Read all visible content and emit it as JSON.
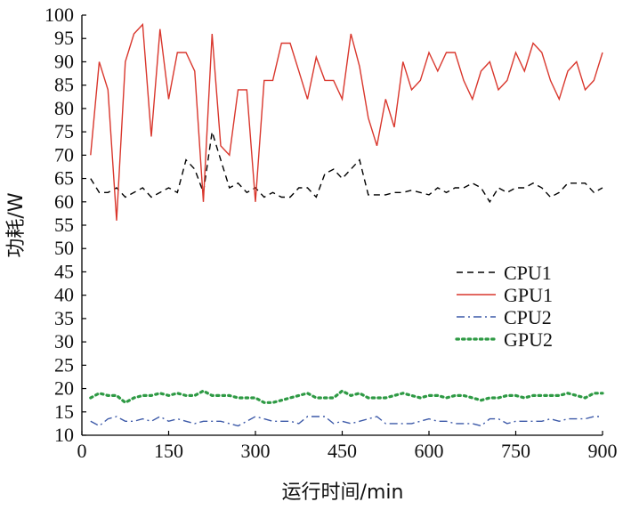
{
  "chart_data": {
    "type": "line",
    "title": "",
    "xlabel": "运行时间/min",
    "ylabel": "功耗/W",
    "xlim": [
      0,
      900
    ],
    "ylim": [
      10,
      100
    ],
    "xticks": [
      0,
      150,
      300,
      450,
      600,
      750,
      900
    ],
    "yticks": [
      10,
      15,
      20,
      25,
      30,
      35,
      40,
      45,
      50,
      55,
      60,
      65,
      70,
      75,
      80,
      85,
      90,
      95,
      100
    ],
    "grid": false,
    "legend_position": "right-middle",
    "series": [
      {
        "name": "CPU1",
        "color": "#000000",
        "dash": "7,5",
        "x": [
          15,
          30,
          45,
          60,
          75,
          90,
          105,
          120,
          135,
          150,
          165,
          180,
          195,
          210,
          225,
          240,
          255,
          270,
          285,
          300,
          315,
          330,
          345,
          360,
          375,
          390,
          405,
          420,
          435,
          450,
          465,
          480,
          495,
          510,
          525,
          540,
          555,
          570,
          585,
          600,
          615,
          630,
          645,
          660,
          675,
          690,
          705,
          720,
          735,
          750,
          765,
          780,
          795,
          810,
          825,
          840,
          855,
          870,
          885,
          900
        ],
        "values": [
          65,
          62,
          62,
          63,
          61,
          62,
          63,
          61,
          62,
          63,
          62,
          69,
          67,
          62,
          75,
          69,
          63,
          64,
          62,
          63,
          61,
          62,
          61,
          61,
          63,
          63,
          61,
          66,
          67,
          65,
          67,
          69,
          61.5,
          61.5,
          61.5,
          62,
          62,
          62.5,
          62,
          61.5,
          63,
          62,
          63,
          63,
          64,
          63,
          60,
          63,
          62,
          63,
          63,
          64,
          63,
          61,
          62,
          64,
          64,
          64,
          62,
          63
        ]
      },
      {
        "name": "GPU1",
        "color": "#d9372d",
        "dash": "",
        "x": [
          15,
          30,
          45,
          60,
          75,
          90,
          105,
          120,
          135,
          150,
          165,
          180,
          195,
          210,
          225,
          240,
          255,
          270,
          285,
          300,
          315,
          330,
          345,
          360,
          375,
          390,
          405,
          420,
          435,
          450,
          465,
          480,
          495,
          510,
          525,
          540,
          555,
          570,
          585,
          600,
          615,
          630,
          645,
          660,
          675,
          690,
          705,
          720,
          735,
          750,
          765,
          780,
          795,
          810,
          825,
          840,
          855,
          870,
          885,
          900
        ],
        "values": [
          70,
          90,
          84,
          56,
          90,
          96,
          98,
          74,
          97,
          82,
          92,
          92,
          88,
          60,
          96,
          72,
          70,
          84,
          84,
          60,
          86,
          86,
          94,
          94,
          88,
          82,
          91,
          86,
          86,
          82,
          96,
          89,
          78,
          72,
          82,
          76,
          90,
          84,
          86,
          92,
          88,
          92,
          92,
          86,
          82,
          88,
          90,
          84,
          86,
          92,
          88,
          94,
          92,
          86,
          82,
          88,
          90,
          84,
          86,
          92
        ]
      },
      {
        "name": "CPU2",
        "color": "#3c59a8",
        "dash": "9,4,2,4",
        "x": [
          15,
          30,
          45,
          60,
          75,
          90,
          105,
          120,
          135,
          150,
          165,
          180,
          195,
          210,
          225,
          240,
          255,
          270,
          285,
          300,
          315,
          330,
          345,
          360,
          375,
          390,
          405,
          420,
          435,
          450,
          465,
          480,
          495,
          510,
          525,
          540,
          555,
          570,
          585,
          600,
          615,
          630,
          645,
          660,
          675,
          690,
          705,
          720,
          735,
          750,
          765,
          780,
          795,
          810,
          825,
          840,
          855,
          870,
          885,
          900
        ],
        "values": [
          13,
          12,
          13.5,
          14,
          13,
          13,
          13.5,
          13,
          14,
          13,
          13.5,
          13,
          12.5,
          13,
          13,
          13,
          12.5,
          12,
          13,
          14,
          13.5,
          13,
          13,
          13,
          12.5,
          14,
          14,
          14,
          12.5,
          13,
          12.5,
          13,
          13.5,
          14,
          12.5,
          12.5,
          12.5,
          12.5,
          13,
          13.5,
          13,
          13,
          12.5,
          12.5,
          12.5,
          12,
          13.5,
          13.5,
          12.5,
          13,
          13,
          13,
          13,
          13.5,
          13,
          13.5,
          13.5,
          13.5,
          14,
          14
        ]
      },
      {
        "name": "GPU2",
        "color": "#2e9a44",
        "dash": "2.4,4.2",
        "x": [
          15,
          30,
          45,
          60,
          75,
          90,
          105,
          120,
          135,
          150,
          165,
          180,
          195,
          210,
          225,
          240,
          255,
          270,
          285,
          300,
          315,
          330,
          345,
          360,
          375,
          390,
          405,
          420,
          435,
          450,
          465,
          480,
          495,
          510,
          525,
          540,
          555,
          570,
          585,
          600,
          615,
          630,
          645,
          660,
          675,
          690,
          705,
          720,
          735,
          750,
          765,
          780,
          795,
          810,
          825,
          840,
          855,
          870,
          885,
          900
        ],
        "values": [
          18,
          19,
          18.5,
          18.5,
          17,
          18,
          18.5,
          18.5,
          19,
          18.5,
          19,
          18.5,
          18.5,
          19.5,
          18.5,
          18.5,
          18.5,
          18,
          18,
          18,
          17,
          17,
          17.5,
          18,
          18.5,
          19,
          18,
          18,
          18,
          19.5,
          18.5,
          19,
          18,
          18,
          18,
          18.5,
          19,
          18.5,
          18,
          18.5,
          18.5,
          18,
          18.5,
          18.5,
          18,
          17.5,
          18,
          18,
          18.5,
          18.5,
          18,
          18.5,
          18.5,
          18.5,
          18.5,
          19,
          18.5,
          18,
          19,
          19
        ]
      }
    ]
  }
}
